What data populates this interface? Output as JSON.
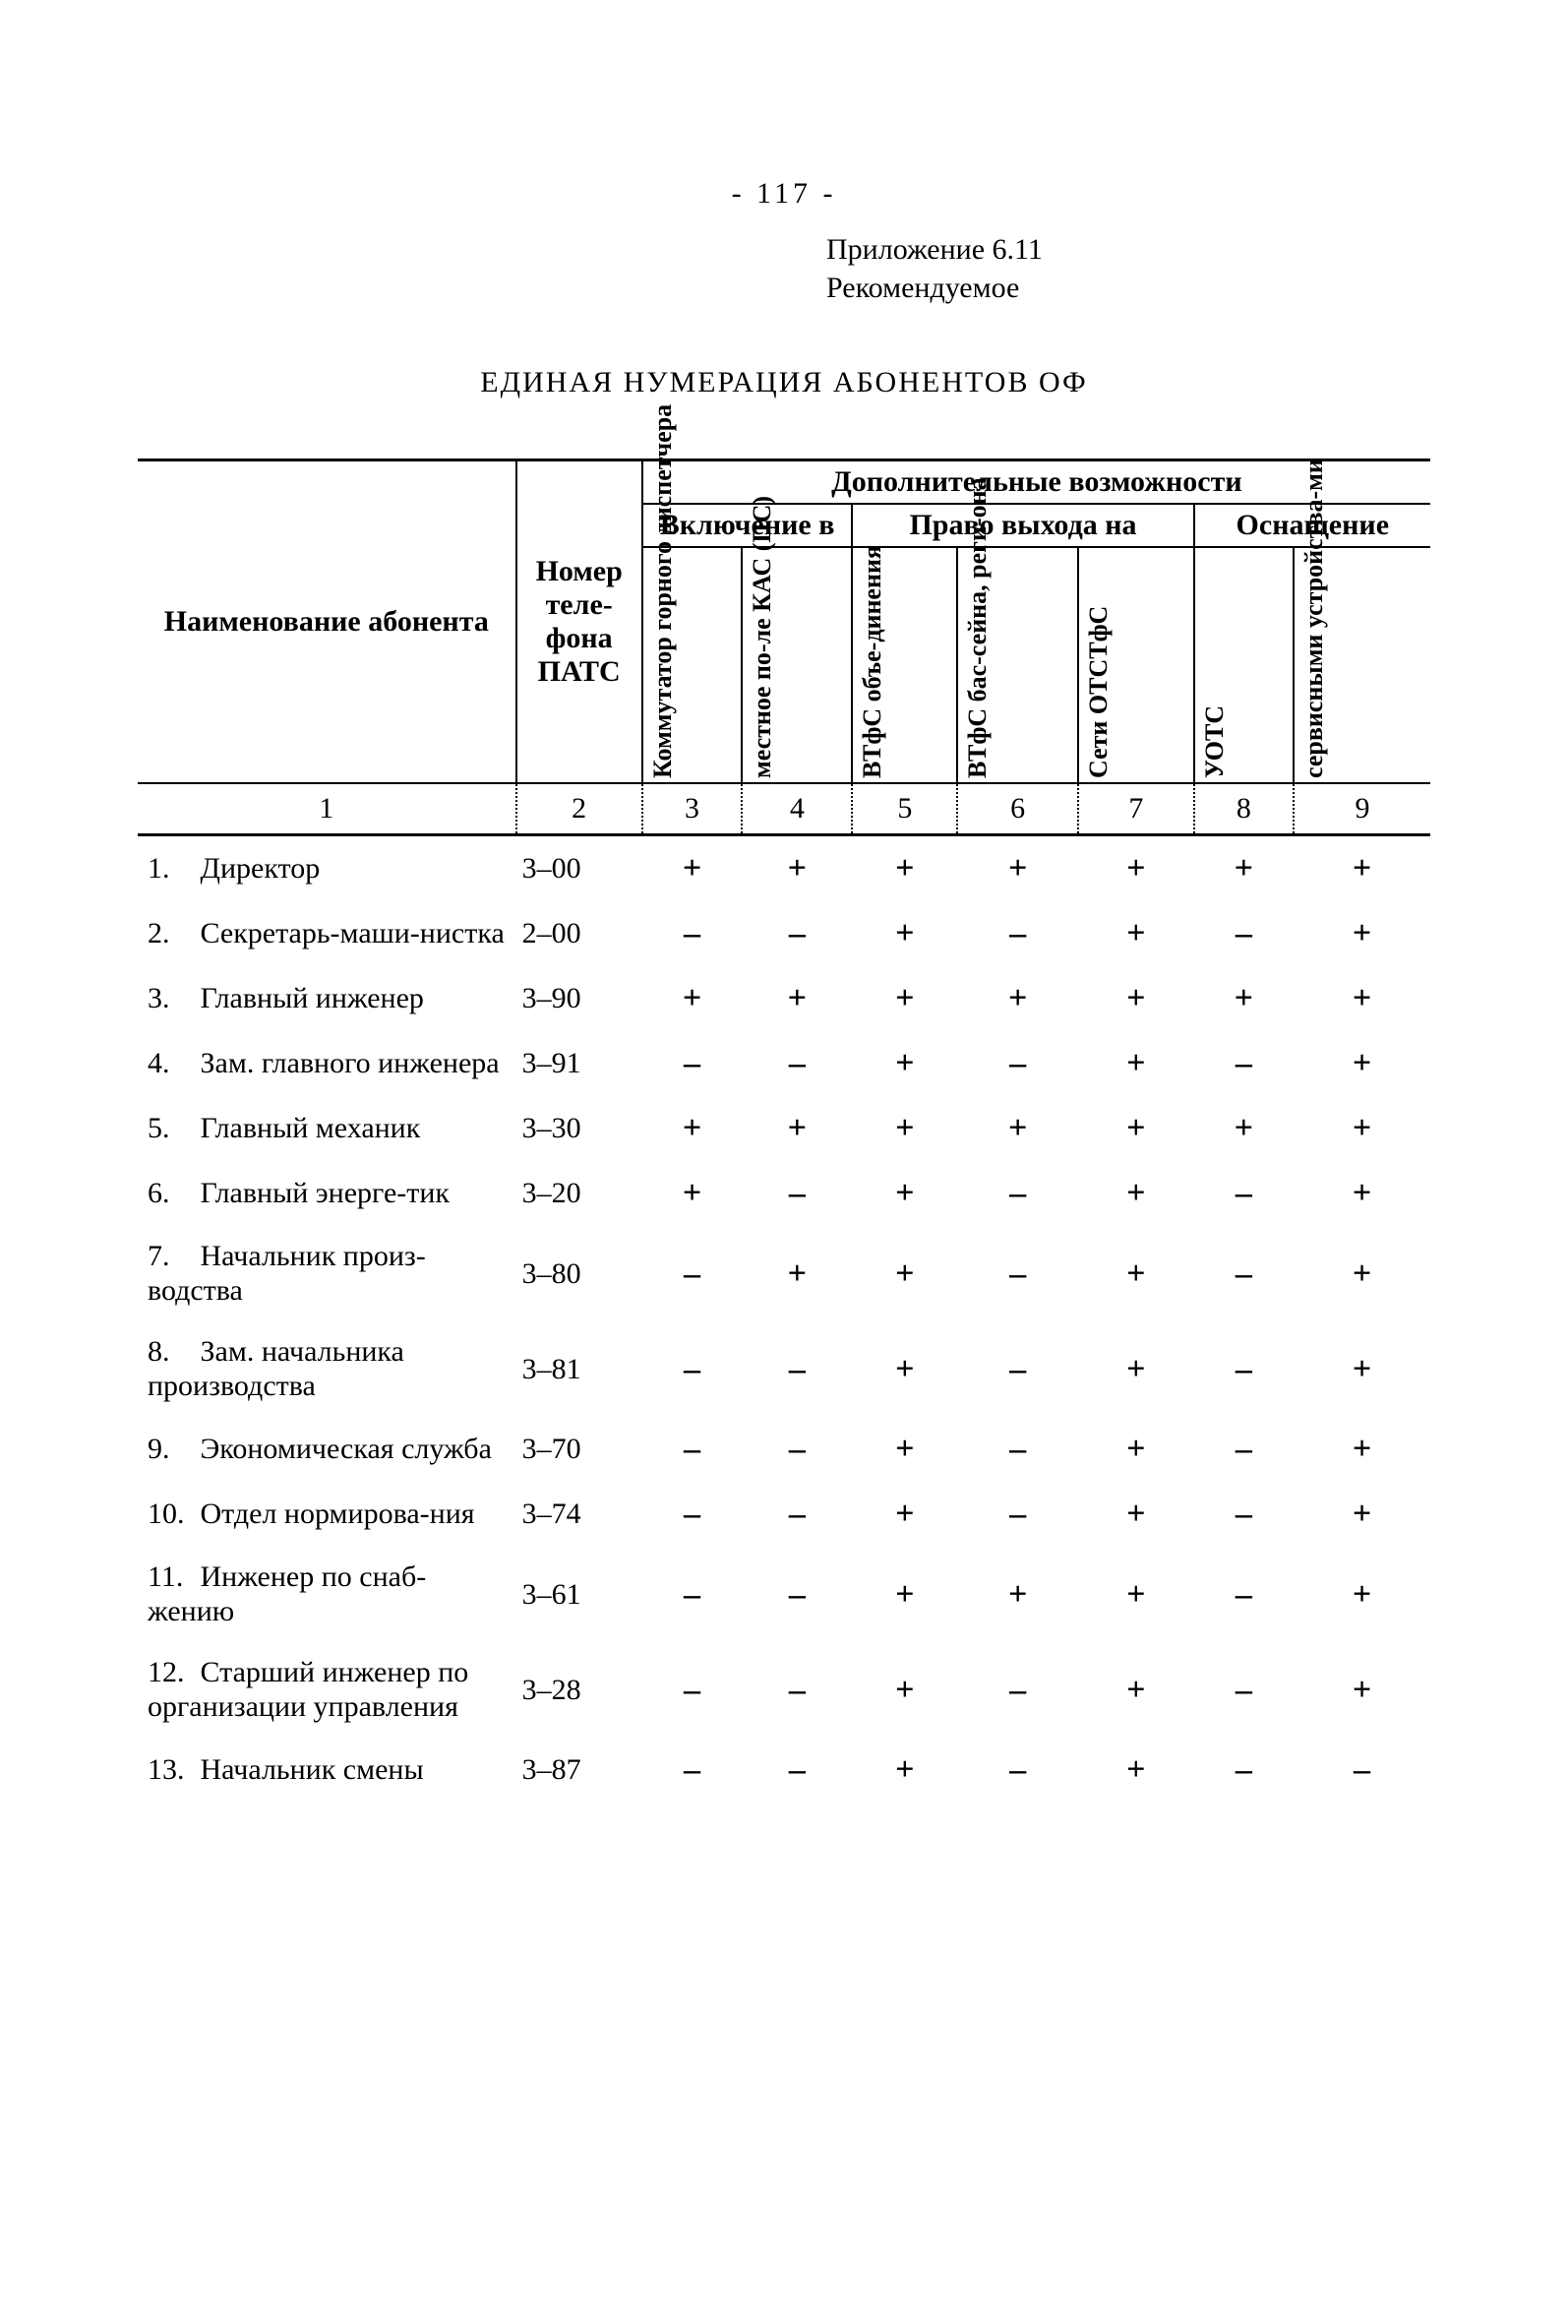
{
  "page_number_display": "-  117  -",
  "appendix_line1": "Приложение 6.11",
  "appendix_line2": "Рекомендуемое",
  "title": "ЕДИНАЯ НУМЕРАЦИЯ АБОНЕНТОВ ОФ",
  "header": {
    "name_label": "Наименование абонента",
    "phone_label": "Номер теле-фона ПАТС",
    "group_top": "Дополнительные возможности",
    "group_incl": "Включение в",
    "group_right": "Право выхода на",
    "group_equip": "Оснащение",
    "col3": "Коммутатор горного диспетчера",
    "col4": "местное по-ле КАС (ПС)",
    "col5": "ВТфС объе-динения",
    "col6": "ВТфС бас-сейна, реги-она",
    "col7": "Сети ОТСТфС",
    "col8": "УОТС",
    "col9": "сервисными устройства-ми"
  },
  "colnums": [
    "1",
    "2",
    "3",
    "4",
    "5",
    "6",
    "7",
    "8",
    "9"
  ],
  "sym_plus": "+",
  "sym_minus": "–",
  "rows": [
    {
      "n": "1.",
      "name": "Директор",
      "num": "3–00",
      "v": [
        "+",
        "+",
        "+",
        "+",
        "+",
        "+",
        "+"
      ]
    },
    {
      "n": "2.",
      "name": "Секретарь-маши-нистка",
      "num": "2–00",
      "v": [
        "–",
        "–",
        "+",
        "–",
        "+",
        "–",
        "+"
      ]
    },
    {
      "n": "3.",
      "name": "Главный инженер",
      "num": "3–90",
      "v": [
        "+",
        "+",
        "+",
        "+",
        "+",
        "+",
        "+"
      ]
    },
    {
      "n": "4.",
      "name": "Зам. главного инженера",
      "num": "3–91",
      "v": [
        "–",
        "–",
        "+",
        "–",
        "+",
        "–",
        "+"
      ]
    },
    {
      "n": "5.",
      "name": "Главный механик",
      "num": "3–30",
      "v": [
        "+",
        "+",
        "+",
        "+",
        "+",
        "+",
        "+"
      ]
    },
    {
      "n": "6.",
      "name": "Главный энерге-тик",
      "num": "3–20",
      "v": [
        "+",
        "–",
        "+",
        "–",
        "+",
        "–",
        "+"
      ]
    },
    {
      "n": "7.",
      "name": "Начальник произ-водства",
      "num": "3–80",
      "v": [
        "–",
        "+",
        "+",
        "–",
        "+",
        "–",
        "+"
      ]
    },
    {
      "n": "8.",
      "name": "Зам. начальника производства",
      "num": "3–81",
      "v": [
        "–",
        "–",
        "+",
        "–",
        "+",
        "–",
        "+"
      ]
    },
    {
      "n": "9.",
      "name": "Экономическая служба",
      "num": "3–70",
      "v": [
        "–",
        "–",
        "+",
        "–",
        "+",
        "–",
        "+"
      ]
    },
    {
      "n": "10.",
      "name": "Отдел нормирова-ния",
      "num": "3–74",
      "v": [
        "–",
        "–",
        "+",
        "–",
        "+",
        "–",
        "+"
      ]
    },
    {
      "n": "11.",
      "name": "Инженер по снаб-жению",
      "num": "3–61",
      "v": [
        "–",
        "–",
        "+",
        "+",
        "+",
        "–",
        "+"
      ]
    },
    {
      "n": "12.",
      "name": "Старший инженер по организации управления",
      "num": "3–28",
      "v": [
        "–",
        "–",
        "+",
        "–",
        "+",
        "–",
        "+"
      ]
    },
    {
      "n": "13.",
      "name": "Начальник смены",
      "num": "3–87",
      "v": [
        "–",
        "–",
        "+",
        "–",
        "+",
        "–",
        "–"
      ]
    }
  ]
}
